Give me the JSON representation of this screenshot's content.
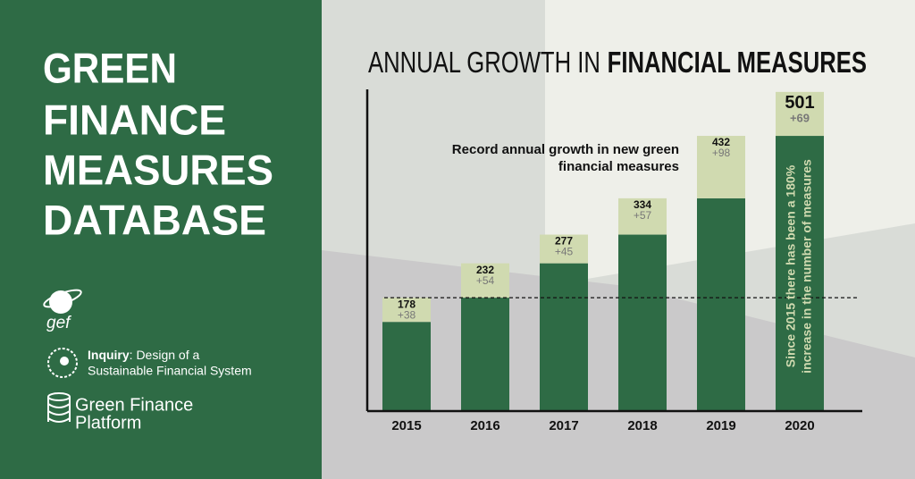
{
  "sidebar": {
    "title": [
      "GREEN",
      "FINANCE",
      "MEASURES",
      "DATABASE"
    ],
    "gef": "gef",
    "inquiry": [
      "Inquiry",
      ": Design of a",
      "Sustainable Financial System"
    ],
    "platform": [
      "Green Finance",
      "Platform"
    ]
  },
  "chart_data": {
    "type": "stacked-bar",
    "title": [
      "ANNUAL GROWTH IN",
      "FINANCIAL MEASURES"
    ],
    "categories": [
      "2015",
      "2016",
      "2017",
      "2018",
      "2019",
      "2020"
    ],
    "series": [
      {
        "color": "#2e6b45",
        "values": [
          140,
          178,
          232,
          277,
          334,
          432
        ]
      },
      {
        "color": "#d0dab0",
        "values": [
          38,
          54,
          45,
          57,
          98,
          69
        ],
        "value_labels": [
          "+38",
          "+54",
          "+45",
          "+57",
          "+98",
          "+69"
        ]
      }
    ],
    "totals": [
      178,
      232,
      277,
      334,
      432,
      501
    ],
    "ylim": [
      0,
      505
    ],
    "annotations": {
      "record": [
        "Record annual growth in new green",
        "financial measures"
      ],
      "since": [
        "Since 2015 there has been a 180%",
        "increase in the number of measures"
      ]
    }
  }
}
